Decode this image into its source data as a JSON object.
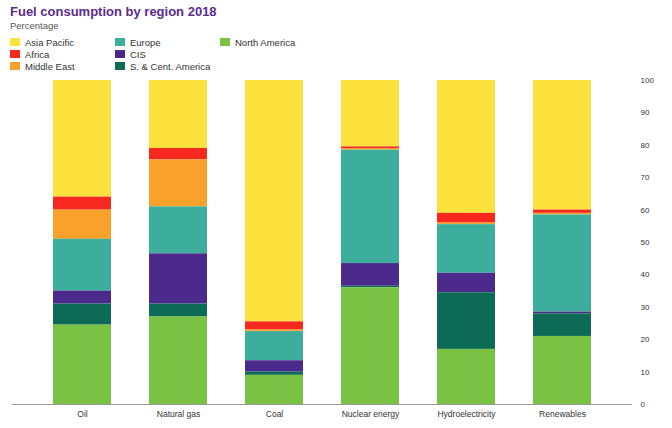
{
  "chart_data": {
    "type": "bar",
    "title": "Fuel consumption by region 2018",
    "subtitle": "Percentage",
    "stacked": true,
    "legend": "top",
    "grid": false,
    "categories": [
      "Oil",
      "Natural gas",
      "Coal",
      "Nuclear energy",
      "Hydroelectricity",
      "Renewables"
    ],
    "series": [
      {
        "name": "Asia Pacific",
        "color": "#fde23e",
        "values": [
          36,
          21,
          74.5,
          20.5,
          41,
          40
        ]
      },
      {
        "name": "Africa",
        "color": "#f7281e",
        "values": [
          4,
          3.5,
          2.5,
          0.5,
          3,
          1
        ]
      },
      {
        "name": "Middle East",
        "color": "#f9a12b",
        "values": [
          9,
          14.5,
          0.5,
          0.5,
          0.5,
          0.5
        ]
      },
      {
        "name": "Europe",
        "color": "#3dae9c",
        "values": [
          16,
          14.5,
          9,
          35,
          15,
          30
        ]
      },
      {
        "name": "CIS",
        "color": "#4b2a8c",
        "values": [
          4,
          15.5,
          3.5,
          7,
          6,
          0.5
        ]
      },
      {
        "name": "S. & Cent. America",
        "color": "#0c6a55",
        "values": [
          6.5,
          4,
          1,
          0.5,
          17.5,
          7
        ]
      },
      {
        "name": "North America",
        "color": "#7bc244",
        "values": [
          24.5,
          27,
          9,
          36,
          17,
          21
        ]
      }
    ],
    "ylim": [
      0,
      100
    ],
    "yticks": [
      0,
      10,
      20,
      30,
      40,
      50,
      60,
      70,
      80,
      90,
      100
    ]
  }
}
